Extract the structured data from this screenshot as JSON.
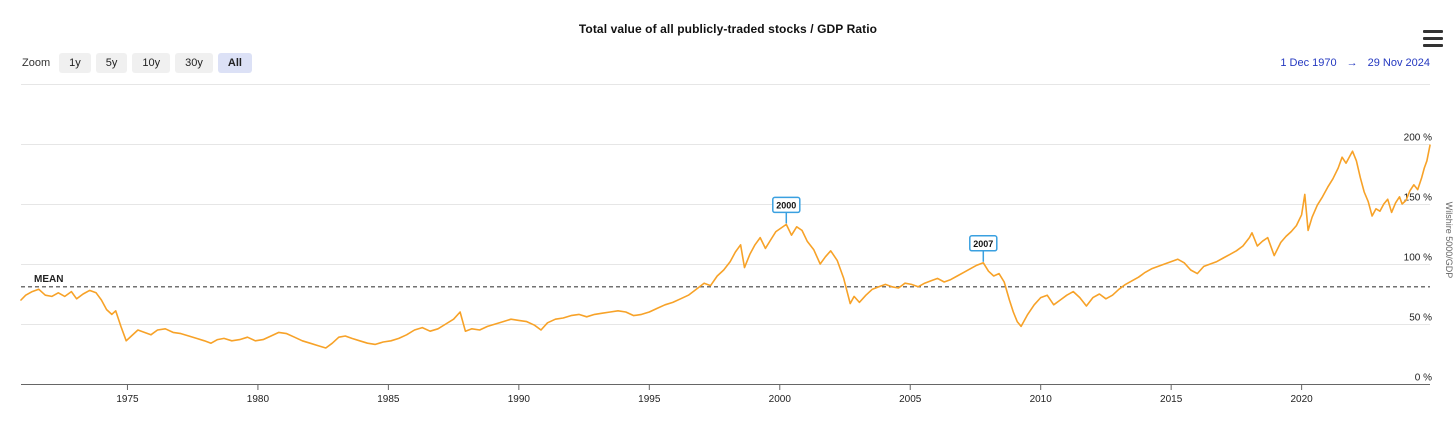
{
  "header": {
    "title": "Total value of all publicly-traded stocks / GDP Ratio"
  },
  "toolbar": {
    "zoom_label": "Zoom",
    "buttons": [
      {
        "label": "1y",
        "selected": false
      },
      {
        "label": "5y",
        "selected": false
      },
      {
        "label": "10y",
        "selected": false
      },
      {
        "label": "30y",
        "selected": false
      },
      {
        "label": "All",
        "selected": true
      }
    ],
    "range": {
      "from": "1 Dec 1970",
      "arrow": "→",
      "to": "29 Nov 2024"
    }
  },
  "colors": {
    "line": "#f7a228",
    "annotation_border": "#3aa0e0",
    "grid": "#e6e6e6",
    "axis": "#666666",
    "mean": "#444444",
    "label_text": "#222222",
    "axis_title_text": "#666666",
    "range_text": "#2438c0",
    "selected_button_bg": "#dce1f6"
  },
  "chart_data": {
    "type": "line",
    "title": "Total value of all publicly-traded stocks / GDP Ratio",
    "y_axis_title": "Wilshire 5000/GDP",
    "x_range": [
      1970.92,
      2024.92
    ],
    "y_range": [
      0,
      250
    ],
    "x_ticks": [
      1975,
      1980,
      1985,
      1990,
      1995,
      2000,
      2005,
      2010,
      2015,
      2020
    ],
    "y_ticks": [
      0,
      50,
      100,
      150,
      200
    ],
    "y_gridlines": [
      50,
      100,
      150,
      200,
      250
    ],
    "y_tick_suffix": " %",
    "grid": true,
    "legend": false,
    "mean_line": {
      "label": "MEAN",
      "value": 81
    },
    "annotations": [
      {
        "label": "2000",
        "x": 2000.25,
        "y": 133
      },
      {
        "label": "2007",
        "x": 2007.8,
        "y": 101
      }
    ],
    "series": [
      {
        "name": "Wilshire 5000/GDP",
        "color": "#f7a228",
        "points": [
          [
            1970.92,
            70
          ],
          [
            1971.1,
            74
          ],
          [
            1971.35,
            77
          ],
          [
            1971.6,
            79
          ],
          [
            1971.85,
            74
          ],
          [
            1972.1,
            73
          ],
          [
            1972.35,
            76
          ],
          [
            1972.6,
            73
          ],
          [
            1972.85,
            77
          ],
          [
            1973.05,
            71
          ],
          [
            1973.3,
            75
          ],
          [
            1973.55,
            78
          ],
          [
            1973.8,
            76
          ],
          [
            1974.0,
            70
          ],
          [
            1974.2,
            62
          ],
          [
            1974.4,
            58
          ],
          [
            1974.55,
            61
          ],
          [
            1974.75,
            48
          ],
          [
            1974.95,
            36
          ],
          [
            1975.15,
            40
          ],
          [
            1975.4,
            45
          ],
          [
            1975.65,
            43
          ],
          [
            1975.9,
            41
          ],
          [
            1976.15,
            45
          ],
          [
            1976.45,
            46
          ],
          [
            1976.75,
            43
          ],
          [
            1977.05,
            42
          ],
          [
            1977.35,
            40
          ],
          [
            1977.65,
            38
          ],
          [
            1977.95,
            36
          ],
          [
            1978.2,
            34
          ],
          [
            1978.45,
            37
          ],
          [
            1978.7,
            38
          ],
          [
            1979.0,
            36
          ],
          [
            1979.3,
            37
          ],
          [
            1979.6,
            39
          ],
          [
            1979.9,
            36
          ],
          [
            1980.2,
            37
          ],
          [
            1980.5,
            40
          ],
          [
            1980.8,
            43
          ],
          [
            1981.1,
            42
          ],
          [
            1981.4,
            39
          ],
          [
            1981.7,
            36
          ],
          [
            1982.0,
            34
          ],
          [
            1982.3,
            32
          ],
          [
            1982.6,
            30
          ],
          [
            1982.85,
            34
          ],
          [
            1983.1,
            39
          ],
          [
            1983.35,
            40
          ],
          [
            1983.6,
            38
          ],
          [
            1983.9,
            36
          ],
          [
            1984.2,
            34
          ],
          [
            1984.5,
            33
          ],
          [
            1984.8,
            35
          ],
          [
            1985.1,
            36
          ],
          [
            1985.4,
            38
          ],
          [
            1985.7,
            41
          ],
          [
            1986.0,
            45
          ],
          [
            1986.3,
            47
          ],
          [
            1986.6,
            44
          ],
          [
            1986.9,
            46
          ],
          [
            1987.2,
            50
          ],
          [
            1987.5,
            54
          ],
          [
            1987.75,
            60
          ],
          [
            1987.95,
            44
          ],
          [
            1988.2,
            46
          ],
          [
            1988.5,
            45
          ],
          [
            1988.8,
            48
          ],
          [
            1989.1,
            50
          ],
          [
            1989.4,
            52
          ],
          [
            1989.7,
            54
          ],
          [
            1990.0,
            53
          ],
          [
            1990.3,
            52
          ],
          [
            1990.6,
            49
          ],
          [
            1990.85,
            45
          ],
          [
            1991.1,
            51
          ],
          [
            1991.4,
            54
          ],
          [
            1991.7,
            55
          ],
          [
            1992.0,
            57
          ],
          [
            1992.3,
            58
          ],
          [
            1992.6,
            56
          ],
          [
            1992.9,
            58
          ],
          [
            1993.2,
            59
          ],
          [
            1993.5,
            60
          ],
          [
            1993.8,
            61
          ],
          [
            1994.1,
            60
          ],
          [
            1994.4,
            57
          ],
          [
            1994.7,
            58
          ],
          [
            1995.0,
            60
          ],
          [
            1995.3,
            63
          ],
          [
            1995.6,
            66
          ],
          [
            1995.9,
            68
          ],
          [
            1996.2,
            71
          ],
          [
            1996.5,
            74
          ],
          [
            1996.8,
            79
          ],
          [
            1997.1,
            84
          ],
          [
            1997.35,
            82
          ],
          [
            1997.6,
            90
          ],
          [
            1997.85,
            95
          ],
          [
            1998.1,
            102
          ],
          [
            1998.3,
            110
          ],
          [
            1998.5,
            116
          ],
          [
            1998.65,
            97
          ],
          [
            1998.85,
            108
          ],
          [
            1999.05,
            116
          ],
          [
            1999.25,
            122
          ],
          [
            1999.45,
            113
          ],
          [
            1999.65,
            120
          ],
          [
            1999.85,
            127
          ],
          [
            2000.05,
            130
          ],
          [
            2000.25,
            133
          ],
          [
            2000.45,
            124
          ],
          [
            2000.65,
            131
          ],
          [
            2000.85,
            128
          ],
          [
            2001.05,
            119
          ],
          [
            2001.3,
            112
          ],
          [
            2001.55,
            100
          ],
          [
            2001.75,
            106
          ],
          [
            2001.95,
            111
          ],
          [
            2002.2,
            103
          ],
          [
            2002.45,
            88
          ],
          [
            2002.7,
            67
          ],
          [
            2002.85,
            73
          ],
          [
            2003.05,
            68
          ],
          [
            2003.3,
            74
          ],
          [
            2003.55,
            79
          ],
          [
            2003.8,
            81
          ],
          [
            2004.05,
            83
          ],
          [
            2004.3,
            81
          ],
          [
            2004.55,
            80
          ],
          [
            2004.8,
            84
          ],
          [
            2005.05,
            83
          ],
          [
            2005.3,
            81
          ],
          [
            2005.55,
            84
          ],
          [
            2005.8,
            86
          ],
          [
            2006.05,
            88
          ],
          [
            2006.3,
            85
          ],
          [
            2006.55,
            87
          ],
          [
            2006.8,
            90
          ],
          [
            2007.05,
            93
          ],
          [
            2007.3,
            96
          ],
          [
            2007.55,
            99
          ],
          [
            2007.8,
            101
          ],
          [
            2008.0,
            94
          ],
          [
            2008.2,
            90
          ],
          [
            2008.4,
            92
          ],
          [
            2008.6,
            85
          ],
          [
            2008.8,
            70
          ],
          [
            2008.95,
            60
          ],
          [
            2009.1,
            52
          ],
          [
            2009.25,
            48
          ],
          [
            2009.5,
            58
          ],
          [
            2009.75,
            66
          ],
          [
            2010.0,
            72
          ],
          [
            2010.25,
            74
          ],
          [
            2010.5,
            66
          ],
          [
            2010.75,
            70
          ],
          [
            2011.0,
            74
          ],
          [
            2011.25,
            77
          ],
          [
            2011.5,
            72
          ],
          [
            2011.75,
            65
          ],
          [
            2012.0,
            72
          ],
          [
            2012.25,
            75
          ],
          [
            2012.5,
            71
          ],
          [
            2012.75,
            74
          ],
          [
            2013.0,
            79
          ],
          [
            2013.25,
            83
          ],
          [
            2013.5,
            86
          ],
          [
            2013.75,
            89
          ],
          [
            2014.0,
            93
          ],
          [
            2014.25,
            96
          ],
          [
            2014.5,
            98
          ],
          [
            2014.75,
            100
          ],
          [
            2015.0,
            102
          ],
          [
            2015.25,
            104
          ],
          [
            2015.5,
            101
          ],
          [
            2015.75,
            95
          ],
          [
            2016.0,
            92
          ],
          [
            2016.25,
            98
          ],
          [
            2016.5,
            100
          ],
          [
            2016.75,
            102
          ],
          [
            2017.0,
            105
          ],
          [
            2017.25,
            108
          ],
          [
            2017.5,
            111
          ],
          [
            2017.75,
            115
          ],
          [
            2018.0,
            122
          ],
          [
            2018.1,
            126
          ],
          [
            2018.3,
            115
          ],
          [
            2018.5,
            119
          ],
          [
            2018.7,
            122
          ],
          [
            2018.95,
            107
          ],
          [
            2019.2,
            118
          ],
          [
            2019.4,
            123
          ],
          [
            2019.6,
            127
          ],
          [
            2019.8,
            132
          ],
          [
            2020.0,
            141
          ],
          [
            2020.12,
            158
          ],
          [
            2020.25,
            128
          ],
          [
            2020.4,
            139
          ],
          [
            2020.6,
            149
          ],
          [
            2020.8,
            156
          ],
          [
            2021.0,
            164
          ],
          [
            2021.2,
            171
          ],
          [
            2021.4,
            180
          ],
          [
            2021.55,
            189
          ],
          [
            2021.7,
            184
          ],
          [
            2021.85,
            190
          ],
          [
            2021.95,
            194
          ],
          [
            2022.1,
            186
          ],
          [
            2022.25,
            172
          ],
          [
            2022.4,
            160
          ],
          [
            2022.55,
            152
          ],
          [
            2022.7,
            140
          ],
          [
            2022.85,
            146
          ],
          [
            2023.0,
            144
          ],
          [
            2023.15,
            150
          ],
          [
            2023.3,
            154
          ],
          [
            2023.45,
            143
          ],
          [
            2023.6,
            151
          ],
          [
            2023.75,
            156
          ],
          [
            2023.85,
            150
          ],
          [
            2024.0,
            153
          ],
          [
            2024.15,
            161
          ],
          [
            2024.3,
            166
          ],
          [
            2024.45,
            162
          ],
          [
            2024.6,
            172
          ],
          [
            2024.7,
            180
          ],
          [
            2024.8,
            186
          ],
          [
            2024.92,
            199
          ]
        ]
      }
    ]
  }
}
